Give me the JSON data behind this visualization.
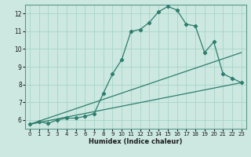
{
  "xlabel": "Humidex (Indice chaleur)",
  "xlim": [
    -0.5,
    23.5
  ],
  "ylim": [
    5.5,
    12.5
  ],
  "xticks": [
    0,
    1,
    2,
    3,
    4,
    5,
    6,
    7,
    8,
    9,
    10,
    11,
    12,
    13,
    14,
    15,
    16,
    17,
    18,
    19,
    20,
    21,
    22,
    23
  ],
  "yticks": [
    6,
    7,
    8,
    9,
    10,
    11,
    12
  ],
  "background_color": "#cce8e0",
  "line_color": "#2e7d6e",
  "curve1_x": [
    0,
    1,
    2,
    3,
    4,
    5,
    6,
    7,
    8,
    9,
    10,
    11,
    12,
    13,
    14,
    15,
    16,
    17,
    18,
    19,
    20,
    21,
    22,
    23
  ],
  "curve1_y": [
    5.75,
    5.9,
    5.8,
    6.0,
    6.1,
    6.1,
    6.2,
    6.35,
    7.5,
    8.6,
    9.4,
    11.0,
    11.1,
    11.5,
    12.1,
    12.4,
    12.2,
    11.4,
    11.3,
    9.8,
    10.4,
    8.6,
    8.35,
    8.1
  ],
  "curve2_x": [
    0,
    23
  ],
  "curve2_y": [
    5.75,
    9.8
  ],
  "curve3_x": [
    0,
    23
  ],
  "curve3_y": [
    5.75,
    8.1
  ],
  "grid_color": "#a8d5c8",
  "marker": "D",
  "marker_size": 2.2,
  "linewidth": 0.9
}
